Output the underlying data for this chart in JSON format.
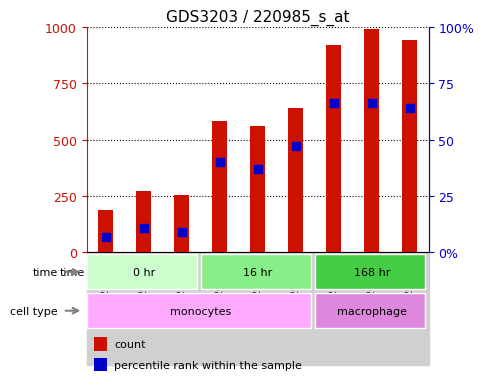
{
  "title": "GDS3203 / 220985_s_at",
  "samples": [
    "GSM205587",
    "GSM205588",
    "GSM205590",
    "GSM205591",
    "GSM205592",
    "GSM205594",
    "GSM205556",
    "GSM205558",
    "GSM205585"
  ],
  "counts": [
    190,
    270,
    255,
    580,
    560,
    640,
    920,
    990,
    940
  ],
  "percentile_ranks": [
    7,
    11,
    9,
    40,
    37,
    47,
    66,
    66,
    64
  ],
  "time_groups": [
    {
      "label": "0 hr",
      "start": 0,
      "end": 3,
      "color": "#ccffcc"
    },
    {
      "label": "16 hr",
      "start": 3,
      "end": 6,
      "color": "#88ee88"
    },
    {
      "label": "168 hr",
      "start": 6,
      "end": 9,
      "color": "#44cc44"
    }
  ],
  "cell_type_groups": [
    {
      "label": "monocytes",
      "start": 0,
      "end": 6,
      "color": "#ffaaff"
    },
    {
      "label": "macrophage",
      "start": 6,
      "end": 9,
      "color": "#dd88dd"
    }
  ],
  "bar_color": "#cc1100",
  "dot_color": "#0000cc",
  "left_axis_color": "#cc1100",
  "right_axis_color": "#0000cc",
  "ylim_left": [
    0,
    1000
  ],
  "ylim_right": [
    0,
    100
  ],
  "yticks_left": [
    0,
    250,
    500,
    750,
    1000
  ],
  "yticks_right": [
    0,
    25,
    50,
    75,
    100
  ],
  "ytick_labels_left": [
    "0",
    "250",
    "500",
    "750",
    "1000"
  ],
  "ytick_labels_right": [
    "0%",
    "25",
    "50",
    "75",
    "100%"
  ],
  "bar_width": 0.4,
  "dot_size": 40,
  "background_color": "#ffffff",
  "plot_bg_color": "#ffffff",
  "legend_count_label": "count",
  "legend_pct_label": "percentile rank within the sample",
  "time_label": "time",
  "cell_type_label": "cell type"
}
